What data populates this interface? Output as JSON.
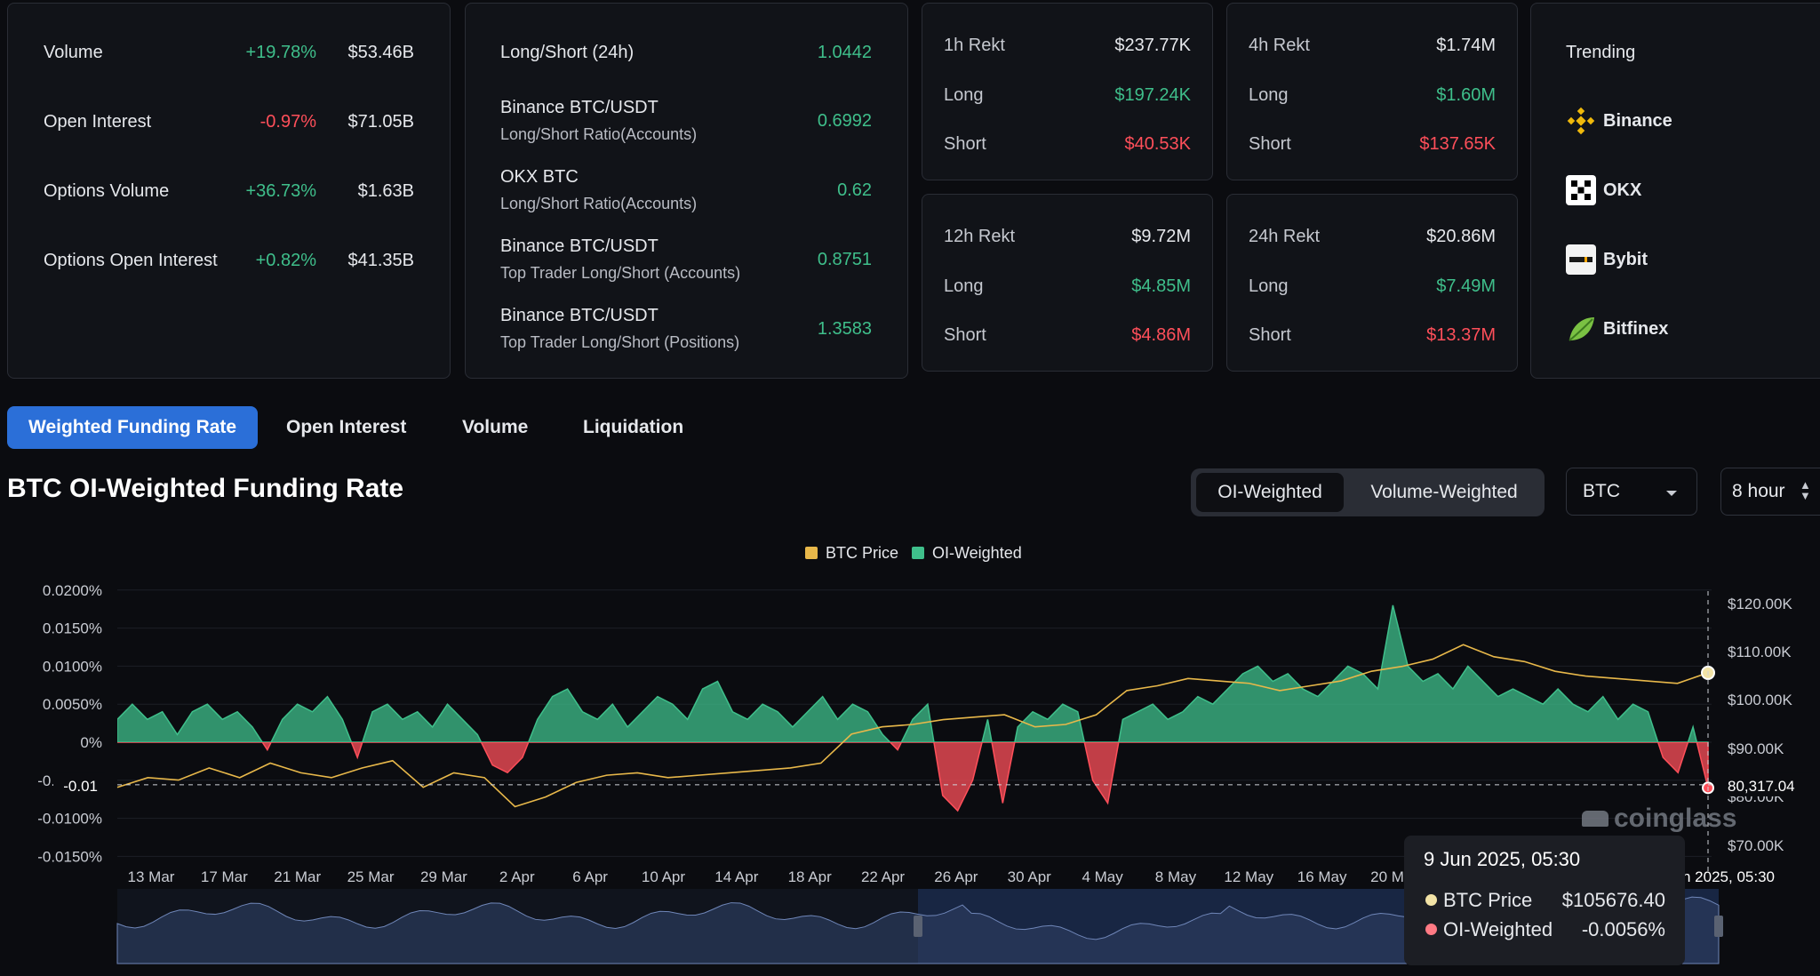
{
  "overview": {
    "rows": [
      {
        "label": "Volume",
        "change": "+19.78%",
        "change_dir": "up",
        "value": "$53.46B"
      },
      {
        "label": "Open Interest",
        "change": "-0.97%",
        "change_dir": "down",
        "value": "$71.05B"
      },
      {
        "label": "Options Volume",
        "change": "+36.73%",
        "change_dir": "up",
        "value": "$1.63B"
      },
      {
        "label": "Options Open Interest",
        "change": "+0.82%",
        "change_dir": "up",
        "value": "$41.35B"
      }
    ]
  },
  "longshort": {
    "rows": [
      {
        "label": "Long/Short (24h)",
        "sub": "",
        "value": "1.0442"
      },
      {
        "label": "Binance BTC/USDT",
        "sub": "Long/Short Ratio(Accounts)",
        "value": "0.6992"
      },
      {
        "label": "OKX BTC",
        "sub": "Long/Short Ratio(Accounts)",
        "value": "0.62"
      },
      {
        "label": "Binance BTC/USDT",
        "sub": "Top Trader Long/Short (Accounts)",
        "value": "0.8751"
      },
      {
        "label": "Binance BTC/USDT",
        "sub": "Top Trader Long/Short (Positions)",
        "value": "1.3583"
      }
    ]
  },
  "rekt": [
    {
      "title": "1h Rekt",
      "total": "$237.77K",
      "long_label": "Long",
      "long": "$197.24K",
      "short_label": "Short",
      "short": "$40.53K"
    },
    {
      "title": "4h Rekt",
      "total": "$1.74M",
      "long_label": "Long",
      "long": "$1.60M",
      "short_label": "Short",
      "short": "$137.65K"
    },
    {
      "title": "12h Rekt",
      "total": "$9.72M",
      "long_label": "Long",
      "long": "$4.85M",
      "short_label": "Short",
      "short": "$4.86M"
    },
    {
      "title": "24h Rekt",
      "total": "$20.86M",
      "long_label": "Long",
      "long": "$7.49M",
      "short_label": "Short",
      "short": "$13.37M"
    }
  ],
  "trending": {
    "title": "Trending",
    "items": [
      {
        "name": "Binance",
        "icon": "binance-icon"
      },
      {
        "name": "OKX",
        "icon": "okx-icon"
      },
      {
        "name": "Bybit",
        "icon": "bybit-icon"
      },
      {
        "name": "Bitfinex",
        "icon": "bitfinex-icon"
      }
    ]
  },
  "tabs": [
    "Weighted Funding Rate",
    "Open Interest",
    "Volume",
    "Liquidation"
  ],
  "section": {
    "title": "BTC OI-Weighted Funding Rate",
    "toggle": [
      "OI-Weighted",
      "Volume-Weighted"
    ],
    "coin_select": "BTC",
    "interval_select": "8 hour"
  },
  "colors": {
    "accent": "#2b6fd8",
    "positive": "#3fbf8b",
    "negative": "#ff4f5a",
    "price_line": "#e8b84a"
  },
  "chart_data": {
    "type": "area",
    "legend": [
      "BTC Price",
      "OI-Weighted"
    ],
    "legend_position": "top-center",
    "x_ticks": [
      "13 Mar",
      "17 Mar",
      "21 Mar",
      "25 Mar",
      "29 Mar",
      "2 Apr",
      "6 Apr",
      "10 Apr",
      "14 Apr",
      "18 Apr",
      "22 Apr",
      "26 Apr",
      "30 Apr",
      "4 May",
      "8 May",
      "12 May",
      "16 May",
      "20 May"
    ],
    "x_tick_last": "9 Jun 2025, 05:30",
    "left_axis": {
      "ticks": [
        "0.0200%",
        "0.0150%",
        "0.0100%",
        "0.0050%",
        "0%",
        "-0.0050%",
        "-0.0100%",
        "-0.0150%"
      ],
      "range": [
        -0.015,
        0.02
      ]
    },
    "right_axis": {
      "ticks": [
        "$120.00K",
        "$110.00K",
        "$100.00K",
        "$90.00K",
        "$80.00K",
        "$70.00K"
      ],
      "range": [
        70000,
        122000
      ]
    },
    "crosshair_left_label": "-0.01",
    "crosshair_right_label": "80,317.04",
    "series": [
      {
        "name": "OI-Weighted",
        "unit": "%",
        "values": [
          0.003,
          0.005,
          0.003,
          0.004,
          0.001,
          0.004,
          0.005,
          0.003,
          0.004,
          0.002,
          -0.001,
          0.003,
          0.005,
          0.004,
          0.006,
          0.003,
          -0.002,
          0.004,
          0.005,
          0.003,
          0.004,
          0.002,
          0.005,
          0.003,
          0.001,
          -0.003,
          -0.004,
          -0.002,
          0.003,
          0.006,
          0.007,
          0.004,
          0.003,
          0.005,
          0.002,
          0.004,
          0.006,
          0.005,
          0.003,
          0.007,
          0.008,
          0.004,
          0.003,
          0.005,
          0.004,
          0.002,
          0.004,
          0.006,
          0.003,
          0.005,
          0.004,
          0.001,
          -0.001,
          0.003,
          0.005,
          -0.007,
          -0.009,
          -0.005,
          0.003,
          -0.008,
          0.002,
          0.004,
          0.003,
          0.005,
          0.004,
          -0.005,
          -0.008,
          0.003,
          0.004,
          0.005,
          0.003,
          0.004,
          0.006,
          0.005,
          0.007,
          0.009,
          0.01,
          0.008,
          0.009,
          0.007,
          0.006,
          0.008,
          0.01,
          0.009,
          0.007,
          0.018,
          0.01,
          0.008,
          0.009,
          0.007,
          0.01,
          0.008,
          0.006,
          0.007,
          0.006,
          0.005,
          0.007,
          0.005,
          0.004,
          0.006,
          0.003,
          0.005,
          0.004,
          -0.002,
          -0.004,
          0.002,
          -0.006
        ]
      },
      {
        "name": "BTC Price",
        "unit": "USD",
        "values": [
          82000,
          84000,
          83500,
          86000,
          84000,
          87000,
          85000,
          84000,
          86000,
          87500,
          82000,
          85000,
          84000,
          78000,
          80000,
          83000,
          84500,
          85000,
          84000,
          84500,
          85000,
          85500,
          86000,
          87000,
          93000,
          94500,
          95000,
          96000,
          96500,
          97000,
          94500,
          95000,
          97000,
          102000,
          103000,
          104500,
          104000,
          103500,
          102000,
          103000,
          104000,
          106000,
          107000,
          108500,
          111500,
          109000,
          108000,
          106000,
          105000,
          104500,
          104000,
          103500,
          105676
        ]
      }
    ],
    "tooltip": {
      "date": "9 Jun 2025, 05:30",
      "rows": [
        {
          "label": "BTC Price",
          "value": "$105676.40"
        },
        {
          "label": "OI-Weighted",
          "value": "-0.0056%"
        }
      ]
    },
    "watermark": "coinglass"
  }
}
